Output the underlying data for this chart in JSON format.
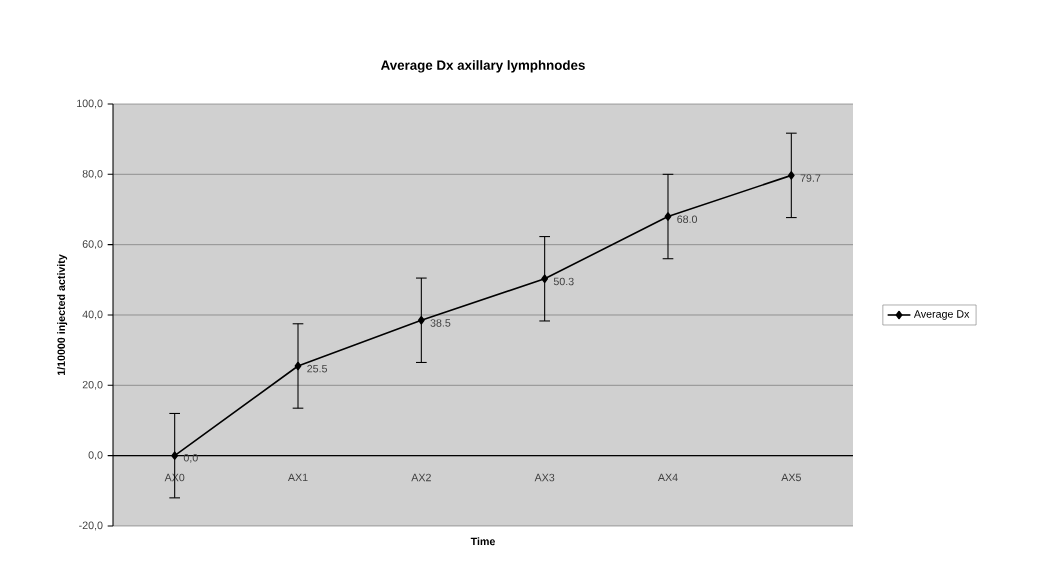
{
  "chart_data": {
    "type": "line",
    "title": "Average Dx axillary lymphnodes",
    "xlabel": "Time",
    "ylabel": "1/10000 injected activity",
    "categories": [
      "AX0",
      "AX1",
      "AX2",
      "AX3",
      "AX4",
      "AX5"
    ],
    "series": [
      {
        "name": "Average Dx",
        "color": "#000000",
        "values": [
          0.0,
          25.5,
          38.5,
          50.3,
          68.0,
          79.7
        ],
        "errors": [
          12,
          12,
          12,
          12,
          12,
          12
        ],
        "value_labels": [
          "0,0",
          "25.5",
          "38.5",
          "50.3",
          "68.0",
          "79.7"
        ]
      }
    ],
    "ylim": [
      -20,
      100
    ],
    "yticks": [
      {
        "value": -20,
        "label": "-20,0"
      },
      {
        "value": 0,
        "label": "0,0"
      },
      {
        "value": 20,
        "label": "20,0"
      },
      {
        "value": 40,
        "label": "40,0"
      },
      {
        "value": 60,
        "label": "60,0"
      },
      {
        "value": 80,
        "label": "80,0"
      },
      {
        "value": 100,
        "label": "100,0"
      }
    ],
    "grid": "y",
    "legend": "right",
    "marker": "diamond",
    "line_style": "solid"
  }
}
